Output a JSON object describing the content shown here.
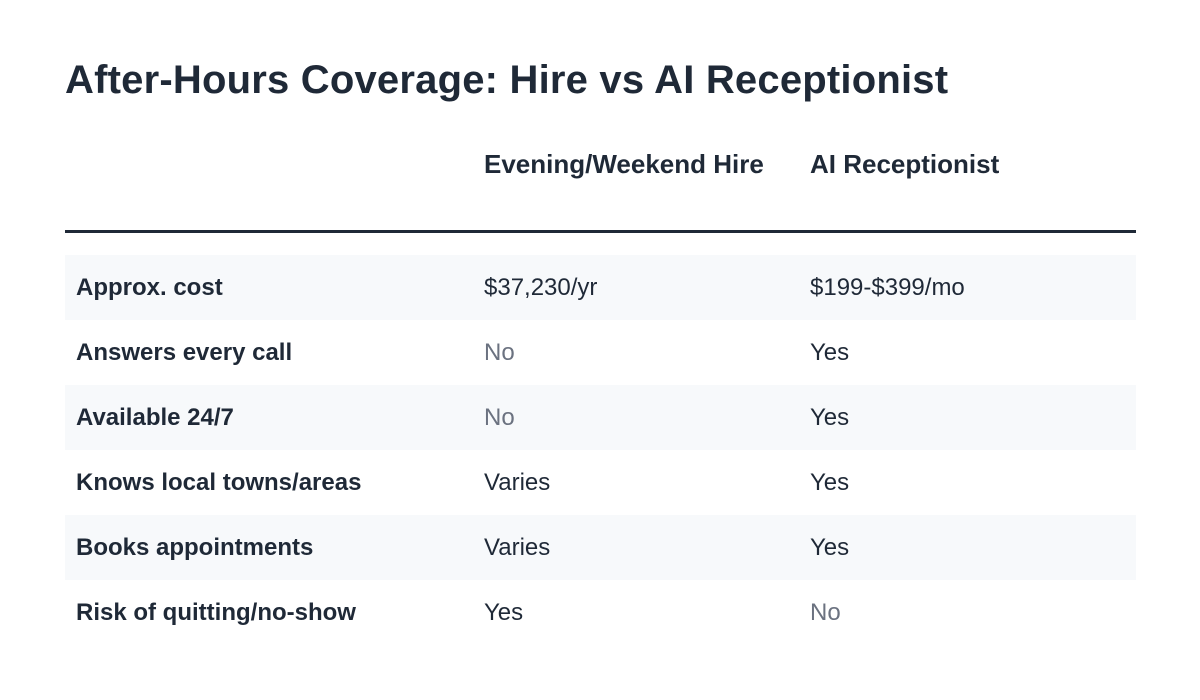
{
  "title": "After-Hours Coverage: Hire vs AI Receptionist",
  "table": {
    "headers": [
      "",
      "Evening/Weekend Hire",
      "AI Receptionist"
    ],
    "rows": [
      {
        "label": "Approx. cost",
        "hire": "$37,230/yr",
        "ai": "$199-$399/mo",
        "hire_muted": false,
        "ai_muted": false
      },
      {
        "label": "Answers every call",
        "hire": "No",
        "ai": "Yes",
        "hire_muted": true,
        "ai_muted": false
      },
      {
        "label": "Available 24/7",
        "hire": "No",
        "ai": "Yes",
        "hire_muted": true,
        "ai_muted": false
      },
      {
        "label": "Knows local towns/areas",
        "hire": "Varies",
        "ai": "Yes",
        "hire_muted": false,
        "ai_muted": false
      },
      {
        "label": "Books appointments",
        "hire": "Varies",
        "ai": "Yes",
        "hire_muted": false,
        "ai_muted": false
      },
      {
        "label": "Risk of quitting/no-show",
        "hire": "Yes",
        "ai": "No",
        "hire_muted": false,
        "ai_muted": true
      }
    ]
  },
  "colors": {
    "text": "#1f2937",
    "muted": "#6b7280",
    "row_shade": "#f7f9fb",
    "rule": "#1f2937"
  }
}
